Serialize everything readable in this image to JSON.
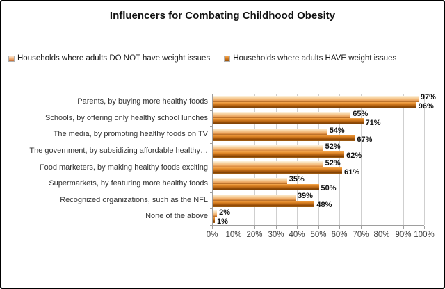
{
  "title": "Influencers for Combating Childhood Obesity",
  "legend": {
    "items": [
      {
        "label": "Households where adults DO NOT have weight issues",
        "series": "light"
      },
      {
        "label": "Households where adults HAVE weight issues",
        "series": "dark"
      }
    ]
  },
  "chart_data": {
    "type": "bar",
    "orientation": "horizontal",
    "title": "Influencers for Combating Childhood Obesity",
    "categories": [
      "Parents, by buying more healthy foods",
      "Schools, by offering only healthy school lunches",
      "The media, by promoting healthy foods on TV",
      "The government, by subsidizing affordable healthy…",
      "Food marketers, by making healthy foods  exciting",
      "Supermarkets, by featuring more healthy foods",
      "Recognized organizations, such as the NFL",
      "None of the above"
    ],
    "series": [
      {
        "name": "Households where adults DO NOT have weight issues",
        "color": "#F2B574",
        "values": [
          97,
          65,
          54,
          52,
          52,
          35,
          39,
          2
        ]
      },
      {
        "name": "Households where adults HAVE weight issues",
        "color": "#C06A14",
        "values": [
          96,
          71,
          67,
          62,
          61,
          50,
          48,
          1
        ]
      }
    ],
    "value_suffix": "%",
    "x_ticks": [
      "0%",
      "10%",
      "20%",
      "30%",
      "40%",
      "50%",
      "60%",
      "70%",
      "80%",
      "90%",
      "100%"
    ],
    "xlim": [
      0,
      100
    ],
    "grid": true,
    "legend_position": "top",
    "colors": {
      "grid": "#CFCFCF",
      "axis": "#9E9E9E",
      "category_text": "#333333",
      "value_label_text": "#111111"
    }
  }
}
